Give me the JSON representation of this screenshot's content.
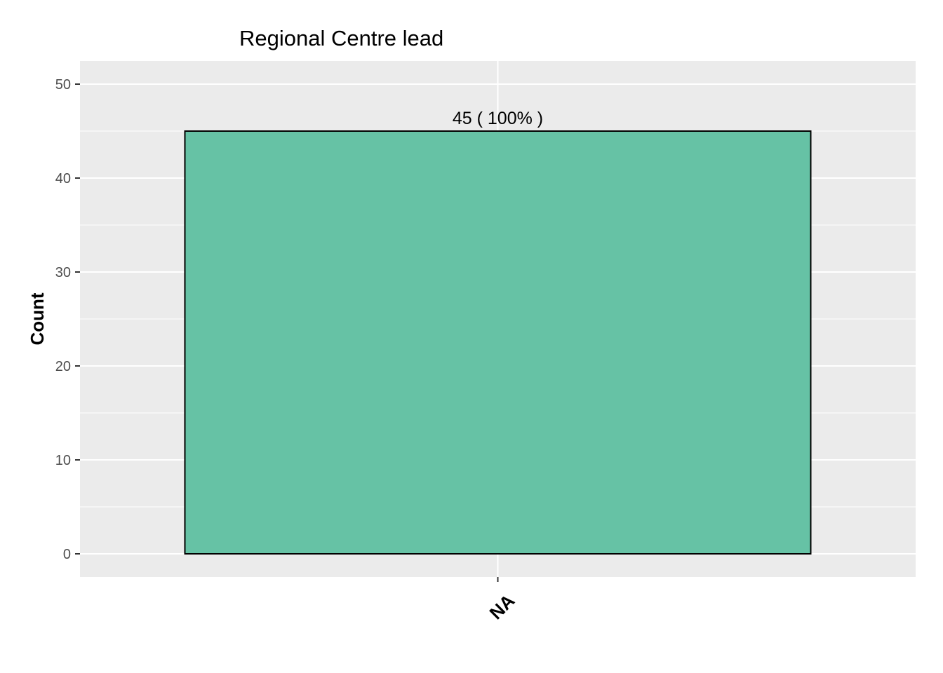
{
  "chart_data": {
    "type": "bar",
    "title": "Regional Centre lead",
    "xlabel": "",
    "ylabel": "Count",
    "categories": [
      "NA"
    ],
    "values": [
      45
    ],
    "data_labels": [
      "45 ( 100% )"
    ],
    "ylim": [
      0,
      50
    ],
    "yticks": [
      0,
      10,
      20,
      30,
      40,
      50
    ],
    "ytick_labels": [
      "0",
      "10",
      "20",
      "30",
      "40",
      "50"
    ],
    "grid": true,
    "legend": "none",
    "colors": {
      "bar_fill": "#66c2a5",
      "bar_stroke": "#000000",
      "panel_bg": "#ebebeb",
      "grid": "#ffffff"
    }
  }
}
